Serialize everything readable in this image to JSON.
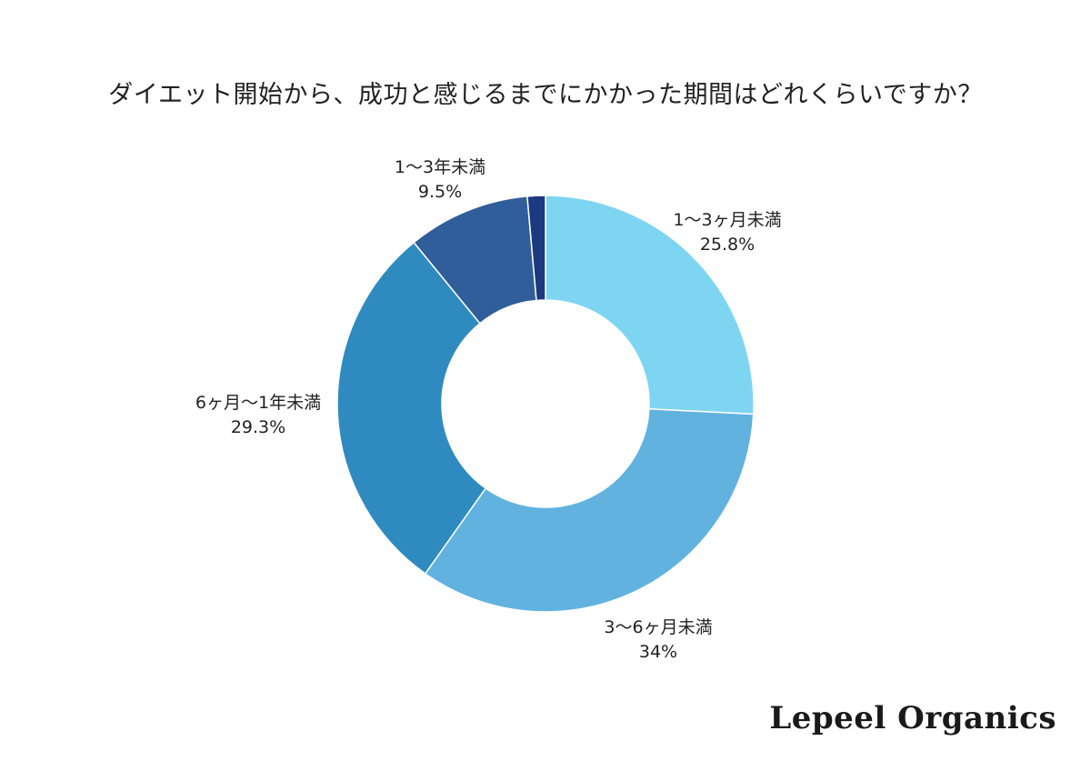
{
  "chart_data": {
    "type": "pie",
    "title": "ダイエット開始から、成功と感じるまでにかかった期間はどれくらいですか？",
    "categories": [
      "1〜3ヶ月未満",
      "3〜6ヶ月未満",
      "6ヶ月〜1年未満",
      "1〜3年未満",
      ""
    ],
    "values": [
      25.8,
      34,
      29.3,
      9.5,
      1.4
    ],
    "value_labels": [
      "25.8%",
      "34%",
      "29.3%",
      "9.5%",
      ""
    ],
    "colors": [
      "#7dd5f2",
      "#62b2e0",
      "#2f8bbf",
      "#2f5e9a",
      "#1d3a80"
    ],
    "donut": true,
    "start_angle_deg": 0,
    "direction": "clockwise",
    "legend": "none"
  },
  "brand": {
    "name": "Lepeel Organics"
  }
}
